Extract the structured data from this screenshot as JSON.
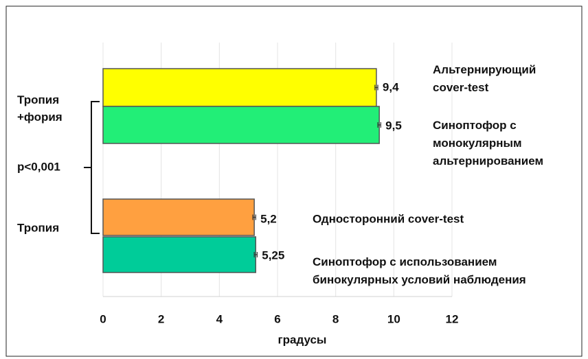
{
  "chart_data": {
    "type": "bar",
    "orientation": "horizontal",
    "categories": [
      "Альтернирующий\ncover-test",
      "Синоптофор с\nмонокулярным\nальтернированием",
      "Односторонний cover-test",
      "Синоптофор с использованием\nбинокулярных условий наблюдения"
    ],
    "values": [
      9.4,
      9.5,
      5.2,
      5.25
    ],
    "value_labels": [
      "9,4",
      "9,5",
      "5,2",
      "5,25"
    ],
    "errors": [
      0.05,
      0.05,
      0.05,
      0.05
    ],
    "colors": [
      "#ffff00",
      "#22ee77",
      "#ffa040",
      "#00cc99"
    ],
    "groups": [
      "Тропия\n+фория",
      "Тропия"
    ],
    "annotation": "p<0,001",
    "xlabel": "градусы",
    "xlim": [
      0,
      12
    ],
    "xticks": [
      0,
      2,
      4,
      6,
      8,
      10,
      12
    ],
    "grid": true
  }
}
